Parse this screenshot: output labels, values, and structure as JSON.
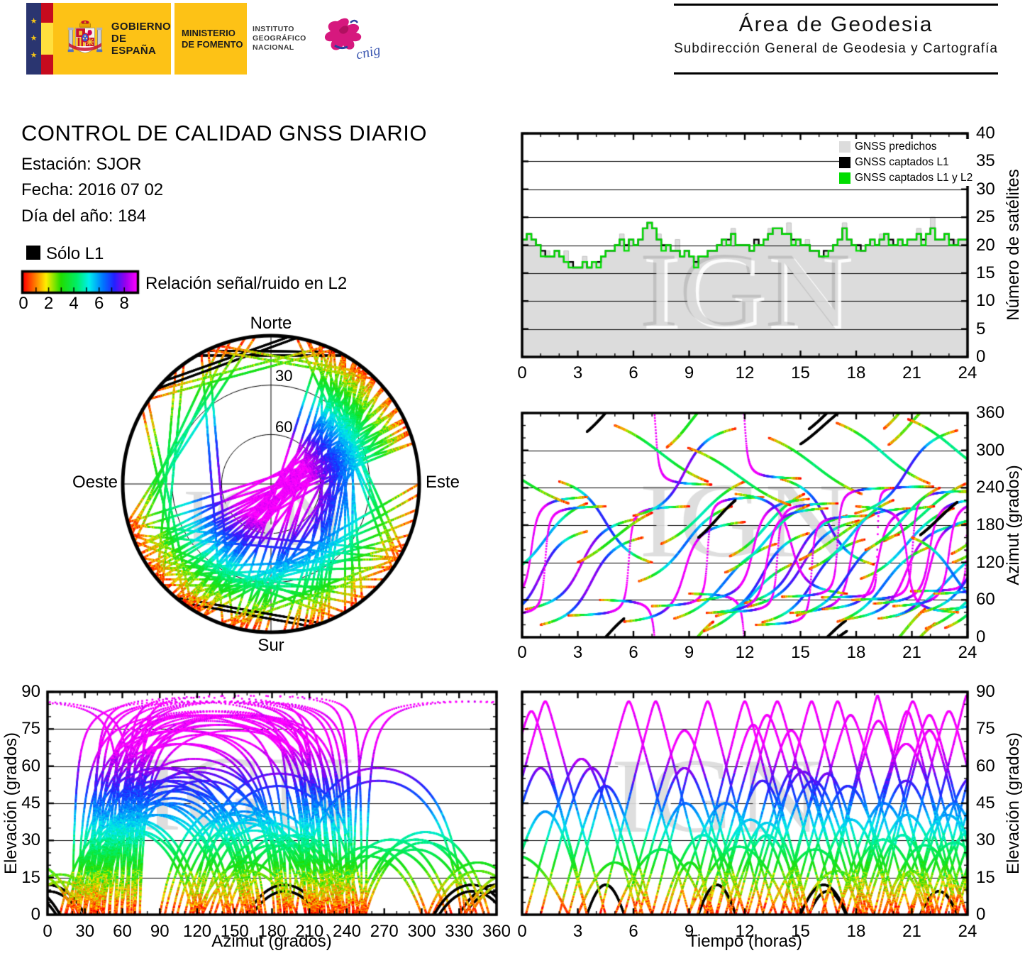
{
  "header": {
    "gobierno": {
      "line1": "GOBIERNO",
      "line2": "DE ESPAÑA"
    },
    "ministerio": {
      "line1": "MINISTERIO",
      "line2": "DE FOMENTO"
    },
    "instituto": {
      "line1": "INSTITUTO",
      "line2": "GEOGRÁFICO",
      "line3": "NACIONAL"
    },
    "cnig_label": "cnig",
    "area": {
      "title": "Área de Geodesia",
      "subtitle": "Subdirección General de Geodesia y Cartografía"
    }
  },
  "info": {
    "title": "CONTROL DE CALIDAD GNSS DIARIO",
    "station": "Estación: SJOR",
    "date": "Fecha: 2016 07 02",
    "day_of_year": "Día del año: 184"
  },
  "legend": {
    "solo_l1": "Sólo L1",
    "solo_l1_color": "#000000",
    "colorbar_label": "Relación señal/ruido en L2",
    "colorbar_ticks": [
      "0",
      "2",
      "4",
      "6",
      "8"
    ],
    "colorbar_range": [
      0,
      9
    ],
    "colormap": [
      [
        0,
        "#ff0000"
      ],
      [
        0.1,
        "#ff7700"
      ],
      [
        0.2,
        "#ffee00"
      ],
      [
        0.33,
        "#22dd00"
      ],
      [
        0.47,
        "#00ee66"
      ],
      [
        0.58,
        "#00eeee"
      ],
      [
        0.7,
        "#0077ff"
      ],
      [
        0.8,
        "#2222ff"
      ],
      [
        0.9,
        "#9900ee"
      ],
      [
        1,
        "#ff00ff"
      ]
    ]
  },
  "watermark": "IGN",
  "satellite_passes": {
    "repeat_shift_hours": 11.95,
    "repeat_az_offset": [
      4,
      -3
    ],
    "passes": [
      {
        "t0": 0.2,
        "dur": 6.0,
        "az_rise": 45,
        "az_set": 190,
        "signal": "snr"
      },
      {
        "t0": 1.0,
        "dur": 5.5,
        "az_rise": 20,
        "az_set": 160,
        "signal": "snr"
      },
      {
        "t0": 2.0,
        "dur": 5.0,
        "az_rise": 250,
        "az_set": 120,
        "signal": "snr"
      },
      {
        "t0": 2.5,
        "dur": 6.5,
        "az_rise": 35,
        "az_set": 210,
        "signal": "snr"
      },
      {
        "t0": 3.0,
        "dur": 4.0,
        "az_rise": 120,
        "az_set": 200,
        "signal": "snr"
      },
      {
        "t0": 3.5,
        "dur": 2.0,
        "az_rise": 330,
        "az_set": 30,
        "signal": "l1_only"
      },
      {
        "t0": 4.2,
        "dur": 6.0,
        "az_rise": 60,
        "az_set": 245,
        "signal": "snr"
      },
      {
        "t0": 5.0,
        "dur": 5.0,
        "az_rise": 340,
        "az_set": 250,
        "signal": "snr"
      },
      {
        "t0": 5.5,
        "dur": 6.5,
        "az_rise": 25,
        "az_set": 185,
        "signal": "snr"
      },
      {
        "t0": 6.0,
        "dur": 5.5,
        "az_rise": 195,
        "az_set": 335,
        "signal": "snr"
      },
      {
        "t0": 6.3,
        "dur": 5.0,
        "az_rise": 90,
        "az_set": 210,
        "signal": "snr"
      },
      {
        "t0": 7.0,
        "dur": 6.0,
        "az_rise": 50,
        "az_set": 225,
        "signal": "snr"
      },
      {
        "t0": 7.5,
        "dur": 4.5,
        "az_rise": 150,
        "az_set": 250,
        "signal": "snr"
      },
      {
        "t0": 7.8,
        "dur": 2.5,
        "az_rise": 305,
        "az_set": 25,
        "signal": "snr"
      },
      {
        "t0": 8.2,
        "dur": 5.5,
        "az_rise": 30,
        "az_set": 150,
        "signal": "snr"
      },
      {
        "t0": 9.0,
        "dur": 6.0,
        "az_rise": 70,
        "az_set": 255,
        "signal": "snr"
      },
      {
        "t0": 9.5,
        "dur": 2.0,
        "az_rise": 160,
        "az_set": 220,
        "signal": "l1_only"
      },
      {
        "t0": 9.8,
        "dur": 5.0,
        "az_rise": 10,
        "az_set": 120,
        "signal": "snr"
      },
      {
        "t0": 10.5,
        "dur": 6.5,
        "az_rise": 40,
        "az_set": 215,
        "signal": "snr"
      },
      {
        "t0": 11.2,
        "dur": 4.0,
        "az_rise": 130,
        "az_set": 230,
        "signal": "snr"
      },
      {
        "t0": 11.5,
        "dur": 6.0,
        "az_rise": 230,
        "az_set": 70,
        "signal": "snr"
      },
      {
        "t0": 12.0,
        "dur": 5.5,
        "az_rise": 55,
        "az_set": 195,
        "signal": "snr"
      },
      {
        "t0": 12.6,
        "dur": 6.0,
        "az_rise": 20,
        "az_set": 195,
        "signal": "snr"
      },
      {
        "t0": 13.3,
        "dur": 5.0,
        "az_rise": 320,
        "az_set": 230,
        "signal": "snr"
      },
      {
        "t0": 14.0,
        "dur": 6.0,
        "az_rise": 65,
        "az_set": 240,
        "signal": "snr"
      },
      {
        "t0": 14.8,
        "dur": 5.5,
        "az_rise": 35,
        "az_set": 165,
        "signal": "snr"
      },
      {
        "t0": 15.0,
        "dur": 2.5,
        "az_rise": 310,
        "az_set": 10,
        "signal": "l1_only"
      },
      {
        "t0": 15.5,
        "dur": 4.5,
        "az_rise": 110,
        "az_set": 220,
        "signal": "snr"
      },
      {
        "t0": 16.2,
        "dur": 6.0,
        "az_rise": 45,
        "az_set": 210,
        "signal": "snr"
      },
      {
        "t0": 17.0,
        "dur": 5.0,
        "az_rise": 25,
        "az_set": 145,
        "signal": "snr"
      },
      {
        "t0": 17.8,
        "dur": 6.5,
        "az_rise": 60,
        "az_set": 235,
        "signal": "snr"
      },
      {
        "t0": 18.0,
        "dur": 5.5,
        "az_rise": 210,
        "az_set": 40,
        "signal": "snr"
      },
      {
        "t0": 18.5,
        "dur": 4.0,
        "az_rise": 140,
        "az_set": 240,
        "signal": "snr"
      },
      {
        "t0": 19.2,
        "dur": 5.5,
        "az_rise": 30,
        "az_set": 190,
        "signal": "snr"
      },
      {
        "t0": 19.5,
        "dur": 2.2,
        "az_rise": 335,
        "az_set": 45,
        "signal": "snr"
      },
      {
        "t0": 20.0,
        "dur": 6.0,
        "az_rise": 50,
        "az_set": 220,
        "signal": "snr"
      },
      {
        "t0": 20.8,
        "dur": 5.0,
        "az_rise": 350,
        "az_set": 255,
        "signal": "snr"
      },
      {
        "t0": 21.0,
        "dur": 4.5,
        "az_rise": 160,
        "az_set": 40,
        "signal": "snr"
      },
      {
        "t0": 21.5,
        "dur": 5.5,
        "az_rise": 40,
        "az_set": 175,
        "signal": "snr"
      },
      {
        "t0": 22.2,
        "dur": 6.0,
        "az_rise": 70,
        "az_set": 245,
        "signal": "snr"
      },
      {
        "t0": 22.8,
        "dur": 4.5,
        "az_rise": 15,
        "az_set": 125,
        "signal": "snr"
      },
      {
        "t0": 23.2,
        "dur": 5.0,
        "az_rise": 120,
        "az_set": 235,
        "signal": "snr"
      },
      {
        "t0": -2.5,
        "dur": 6.0,
        "az_rise": 55,
        "az_set": 225,
        "signal": "snr"
      },
      {
        "t0": -1.5,
        "dur": 5.0,
        "az_rise": 30,
        "az_set": 170,
        "signal": "snr"
      },
      {
        "t0": -3.0,
        "dur": 5.5,
        "az_rise": 300,
        "az_set": 215,
        "signal": "snr"
      },
      {
        "t0": -1.0,
        "dur": 4.5,
        "az_rise": 100,
        "az_set": 215,
        "signal": "snr"
      },
      {
        "t0": -2.0,
        "dur": 6.5,
        "az_rise": 35,
        "az_set": 210,
        "signal": "snr"
      }
    ]
  },
  "chart_data": [
    {
      "id": "sat_count",
      "type": "area",
      "title": "",
      "xlabel": "",
      "ylabel": "Número de satélites",
      "xlim": [
        0,
        24
      ],
      "ylim": [
        0,
        40
      ],
      "xticks": [
        0,
        3,
        6,
        9,
        12,
        15,
        18,
        21,
        24
      ],
      "yticks": [
        0,
        5,
        10,
        15,
        20,
        25,
        30,
        35,
        40
      ],
      "grid": "horizontal",
      "legend_position": "top-right",
      "legend": [
        {
          "label": "GNSS predichos",
          "color": "#dcdcdc"
        },
        {
          "label": "GNSS captados L1",
          "color": "#000000"
        },
        {
          "label": "GNSS captados L1 y L2",
          "color": "#00dd00"
        }
      ],
      "x_step_hours": 0.25,
      "series": {
        "predicted": [
          21,
          22,
          21,
          20,
          19,
          19,
          18,
          19,
          18,
          19,
          17,
          16,
          16,
          18,
          16,
          17,
          17,
          18,
          19,
          19,
          20,
          22,
          20,
          21,
          20,
          21,
          23,
          24,
          23,
          22,
          20,
          20,
          19,
          21,
          18,
          19,
          18,
          18,
          18,
          18,
          19,
          19,
          20,
          21,
          21,
          23,
          20,
          20,
          20,
          19,
          21,
          20,
          21,
          23,
          23,
          23,
          22,
          24,
          21,
          21,
          20,
          21,
          19,
          19,
          18,
          19,
          19,
          20,
          21,
          24,
          21,
          20,
          20,
          19,
          20,
          21,
          20,
          22,
          22,
          21,
          20,
          21,
          20,
          21,
          21,
          23,
          21,
          22,
          25,
          21,
          21,
          22,
          21,
          21,
          21,
          21
        ],
        "captados_l1": [
          21,
          22,
          21,
          20,
          19,
          18,
          18,
          19,
          18,
          17,
          17,
          16,
          16,
          17,
          16,
          17,
          17,
          18,
          19,
          19,
          20,
          21,
          20,
          21,
          20,
          21,
          23,
          24,
          23,
          21,
          20,
          20,
          19,
          19,
          18,
          19,
          18,
          17,
          18,
          18,
          19,
          19,
          20,
          21,
          21,
          22,
          20,
          20,
          20,
          19,
          21,
          20,
          21,
          22,
          23,
          23,
          22,
          22,
          21,
          21,
          20,
          20,
          19,
          19,
          18,
          19,
          19,
          20,
          21,
          23,
          21,
          20,
          20,
          19,
          20,
          21,
          20,
          21,
          22,
          21,
          20,
          21,
          20,
          21,
          21,
          22,
          21,
          22,
          23,
          21,
          21,
          22,
          21,
          20,
          21,
          21
        ],
        "captados_l1_l2": [
          21,
          22,
          21,
          20,
          18,
          18,
          18,
          19,
          18,
          17,
          16,
          16,
          16,
          17,
          16,
          17,
          16,
          18,
          19,
          19,
          20,
          21,
          19,
          21,
          20,
          21,
          23,
          24,
          23,
          21,
          19,
          20,
          19,
          19,
          18,
          19,
          18,
          16,
          18,
          18,
          19,
          19,
          20,
          21,
          20,
          22,
          20,
          20,
          20,
          19,
          20,
          20,
          21,
          22,
          23,
          23,
          22,
          22,
          20,
          21,
          20,
          20,
          19,
          19,
          18,
          18,
          19,
          20,
          21,
          23,
          21,
          20,
          19,
          19,
          20,
          21,
          20,
          21,
          22,
          20,
          20,
          21,
          20,
          21,
          21,
          22,
          20,
          22,
          23,
          21,
          21,
          22,
          20,
          20,
          21,
          21
        ]
      }
    },
    {
      "id": "azimuth_time",
      "type": "scatter-tracks",
      "title": "",
      "xlabel": "",
      "ylabel": "Azimut (grados)",
      "xlim": [
        0,
        24
      ],
      "ylim": [
        0,
        360
      ],
      "xticks": [
        0,
        3,
        6,
        9,
        12,
        15,
        18,
        21,
        24
      ],
      "yticks": [
        0,
        60,
        120,
        180,
        240,
        300,
        360
      ],
      "grid": "horizontal",
      "tracks_source": "satellite_passes",
      "color_by": "snr_l2"
    },
    {
      "id": "skyplot",
      "type": "polar-tracks",
      "labels": {
        "n": "Norte",
        "s": "Sur",
        "e": "Este",
        "w": "Oeste"
      },
      "ring_labels": [
        "30",
        "60"
      ],
      "elev_rings": [
        30,
        60
      ],
      "tracks_source": "satellite_passes",
      "color_by": "snr_l2"
    },
    {
      "id": "elev_azimuth",
      "type": "scatter-tracks",
      "title": "",
      "xlabel": "Azimut (grados)",
      "ylabel": "Elevación (grados)",
      "xlim": [
        0,
        360
      ],
      "ylim": [
        0,
        90
      ],
      "xticks": [
        0,
        30,
        60,
        90,
        120,
        150,
        180,
        210,
        240,
        270,
        300,
        330,
        360
      ],
      "yticks": [
        0,
        15,
        30,
        45,
        60,
        75,
        90
      ],
      "grid": "horizontal",
      "tracks_source": "satellite_passes",
      "color_by": "snr_l2"
    },
    {
      "id": "elev_time",
      "type": "scatter-tracks",
      "title": "",
      "xlabel": "Tiempo (horas)",
      "ylabel": "Elevación (grados)",
      "xlim": [
        0,
        24
      ],
      "ylim": [
        0,
        90
      ],
      "xticks": [
        0,
        3,
        6,
        9,
        12,
        15,
        18,
        21,
        24
      ],
      "yticks": [
        0,
        15,
        30,
        45,
        60,
        75,
        90
      ],
      "grid": "horizontal",
      "tracks_source": "satellite_passes",
      "color_by": "snr_l2"
    }
  ]
}
